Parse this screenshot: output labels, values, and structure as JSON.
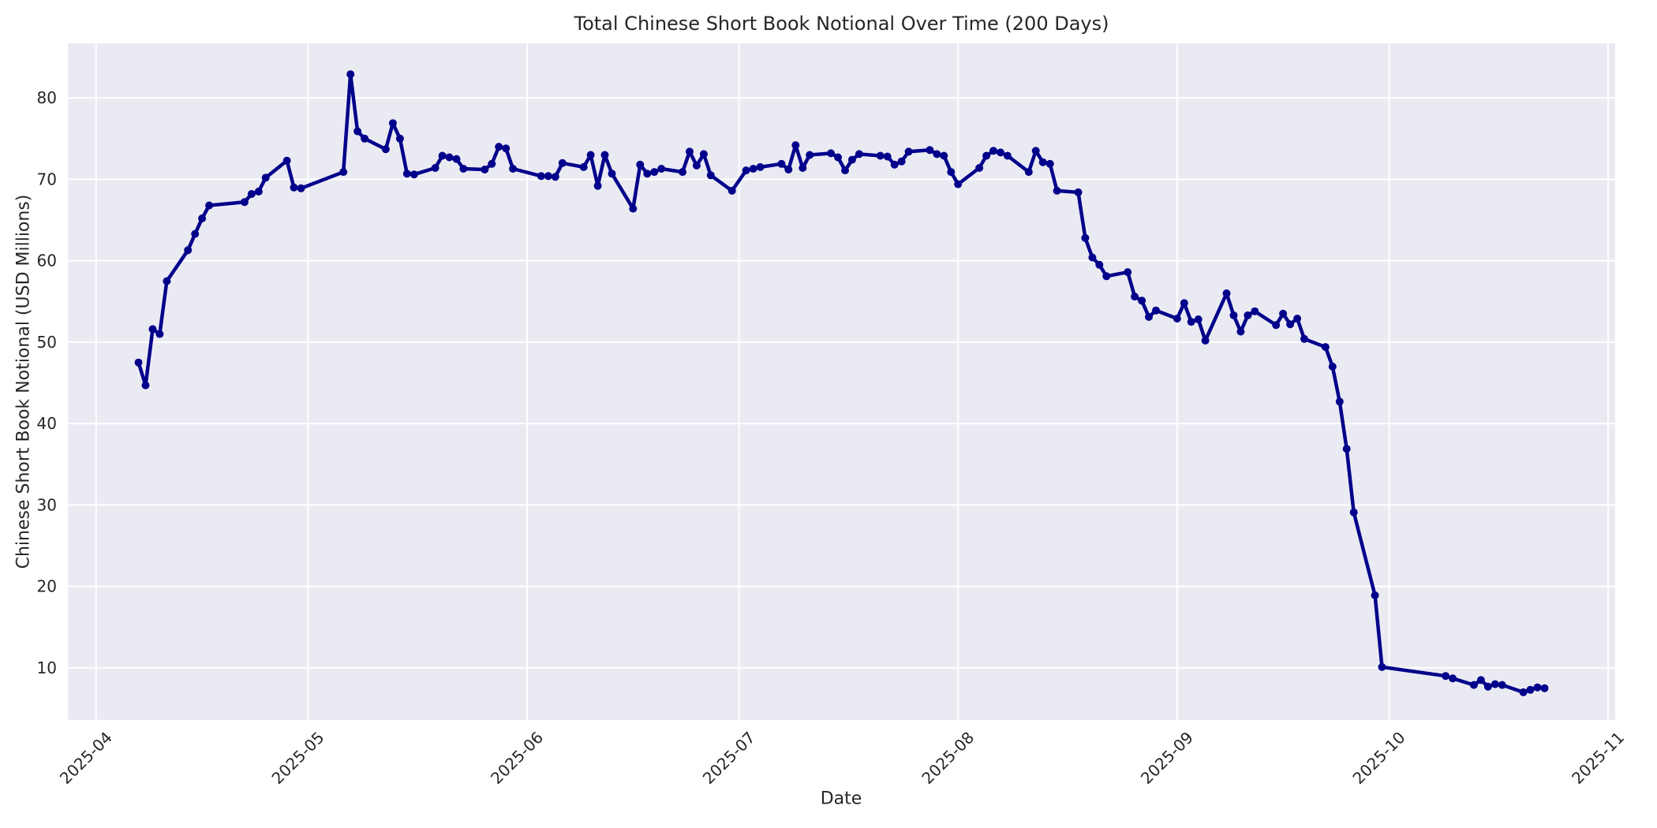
{
  "figure": {
    "title": "Total Chinese Short Book Notional Over Time (200 Days)",
    "xlabel": "Date",
    "ylabel": "Chinese Short Book Notional (USD Millions)"
  },
  "style": {
    "figure_bg": "#ffffff",
    "plot_bg": "#eaeaf2",
    "grid_color": "#ffffff",
    "line_color": "#00008b",
    "marker_color": "#00008b",
    "text_color": "#262626"
  },
  "chart_data": {
    "type": "line",
    "title": "Total Chinese Short Book Notional Over Time (200 Days)",
    "xlabel": "Date",
    "ylabel": "Chinese Short Book Notional (USD Millions)",
    "legend": null,
    "grid": true,
    "ylim": [
      3.6,
      86.7
    ],
    "xlim": [
      "2025-03-28",
      "2025-11-02"
    ],
    "yticks": [
      10,
      20,
      30,
      40,
      50,
      60,
      70,
      80
    ],
    "xticks": [
      {
        "date": "2025-04-01",
        "label": "2025-04"
      },
      {
        "date": "2025-05-01",
        "label": "2025-05"
      },
      {
        "date": "2025-06-01",
        "label": "2025-06"
      },
      {
        "date": "2025-07-01",
        "label": "2025-07"
      },
      {
        "date": "2025-08-01",
        "label": "2025-08"
      },
      {
        "date": "2025-09-01",
        "label": "2025-09"
      },
      {
        "date": "2025-10-01",
        "label": "2025-10"
      },
      {
        "date": "2025-11-01",
        "label": "2025-11"
      }
    ],
    "series_name": "Total Chinese Short Book Notional (USD Millions)",
    "x": [
      "2025-04-07",
      "2025-04-08",
      "2025-04-09",
      "2025-04-10",
      "2025-04-11",
      "2025-04-14",
      "2025-04-15",
      "2025-04-16",
      "2025-04-17",
      "2025-04-22",
      "2025-04-23",
      "2025-04-24",
      "2025-04-25",
      "2025-04-28",
      "2025-04-29",
      "2025-04-30",
      "2025-05-06",
      "2025-05-07",
      "2025-05-08",
      "2025-05-09",
      "2025-05-12",
      "2025-05-13",
      "2025-05-14",
      "2025-05-15",
      "2025-05-16",
      "2025-05-19",
      "2025-05-20",
      "2025-05-21",
      "2025-05-22",
      "2025-05-23",
      "2025-05-26",
      "2025-05-27",
      "2025-05-28",
      "2025-05-29",
      "2025-05-30",
      "2025-06-03",
      "2025-06-04",
      "2025-06-05",
      "2025-06-06",
      "2025-06-09",
      "2025-06-10",
      "2025-06-11",
      "2025-06-12",
      "2025-06-13",
      "2025-06-16",
      "2025-06-17",
      "2025-06-18",
      "2025-06-19",
      "2025-06-20",
      "2025-06-23",
      "2025-06-24",
      "2025-06-25",
      "2025-06-26",
      "2025-06-27",
      "2025-06-30",
      "2025-07-02",
      "2025-07-03",
      "2025-07-04",
      "2025-07-07",
      "2025-07-08",
      "2025-07-09",
      "2025-07-10",
      "2025-07-11",
      "2025-07-14",
      "2025-07-15",
      "2025-07-16",
      "2025-07-17",
      "2025-07-18",
      "2025-07-21",
      "2025-07-22",
      "2025-07-23",
      "2025-07-24",
      "2025-07-25",
      "2025-07-28",
      "2025-07-29",
      "2025-07-30",
      "2025-07-31",
      "2025-08-01",
      "2025-08-04",
      "2025-08-05",
      "2025-08-06",
      "2025-08-07",
      "2025-08-08",
      "2025-08-11",
      "2025-08-12",
      "2025-08-13",
      "2025-08-14",
      "2025-08-15",
      "2025-08-18",
      "2025-08-19",
      "2025-08-20",
      "2025-08-21",
      "2025-08-22",
      "2025-08-25",
      "2025-08-26",
      "2025-08-27",
      "2025-08-28",
      "2025-08-29",
      "2025-09-01",
      "2025-09-02",
      "2025-09-03",
      "2025-09-04",
      "2025-09-05",
      "2025-09-08",
      "2025-09-09",
      "2025-09-10",
      "2025-09-11",
      "2025-09-12",
      "2025-09-15",
      "2025-09-16",
      "2025-09-17",
      "2025-09-18",
      "2025-09-19",
      "2025-09-22",
      "2025-09-23",
      "2025-09-24",
      "2025-09-25",
      "2025-09-26",
      "2025-09-29",
      "2025-09-30",
      "2025-10-09",
      "2025-10-10",
      "2025-10-13",
      "2025-10-14",
      "2025-10-15",
      "2025-10-16",
      "2025-10-17",
      "2025-10-20",
      "2025-10-21",
      "2025-10-22",
      "2025-10-23"
    ],
    "y": [
      47.5,
      44.7,
      51.6,
      51.0,
      57.5,
      61.3,
      63.3,
      65.2,
      66.8,
      67.2,
      68.2,
      68.5,
      70.2,
      72.3,
      69.0,
      68.9,
      70.9,
      82.9,
      75.9,
      75.0,
      73.7,
      76.9,
      75.0,
      70.7,
      70.6,
      71.4,
      72.9,
      72.7,
      72.5,
      71.3,
      71.2,
      71.9,
      74.0,
      73.8,
      71.3,
      70.4,
      70.4,
      70.3,
      72.0,
      71.5,
      73.0,
      69.2,
      73.0,
      70.7,
      66.4,
      71.8,
      70.7,
      70.9,
      71.3,
      70.9,
      73.4,
      71.7,
      73.1,
      70.5,
      68.6,
      71.1,
      71.3,
      71.5,
      71.9,
      71.2,
      74.2,
      71.4,
      73.0,
      73.2,
      72.7,
      71.1,
      72.4,
      73.1,
      72.9,
      72.8,
      71.8,
      72.2,
      73.4,
      73.6,
      73.1,
      72.9,
      70.9,
      69.4,
      71.4,
      72.9,
      73.5,
      73.3,
      72.9,
      70.9,
      73.5,
      72.1,
      71.9,
      68.6,
      68.4,
      62.8,
      60.4,
      59.5,
      58.1,
      58.6,
      55.6,
      55.1,
      53.1,
      53.9,
      52.9,
      54.8,
      52.5,
      52.8,
      50.2,
      56.0,
      53.3,
      51.3,
      53.3,
      53.8,
      52.1,
      53.5,
      52.2,
      52.9,
      50.4,
      49.4,
      47.0,
      42.7,
      36.9,
      29.1,
      18.9,
      10.1,
      9.0,
      8.7,
      7.9,
      8.5,
      7.7,
      8.0,
      7.9,
      7.0,
      7.3,
      7.6,
      7.5
    ]
  }
}
